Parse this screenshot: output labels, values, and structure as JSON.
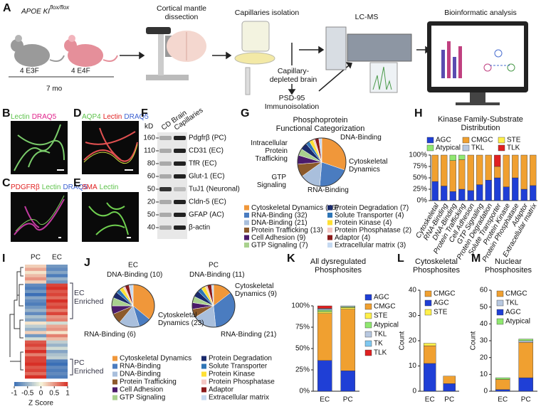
{
  "panels": {
    "A": {
      "label": "A",
      "mouse_strain": "APOE KI",
      "strain_superscript": "flox/flox",
      "group1": "4 E3F",
      "group2": "4 E4F",
      "age": "7 mo",
      "step1": "Cortical mantle dissection",
      "step2": "Capillaries isolation",
      "step3": "LC-MS",
      "step4": "Bioinformatic analysis",
      "branch1": "Capillary-depleted brain",
      "branch2": "PSD-95 Immunoisolation"
    },
    "B": {
      "label": "B",
      "stains": [
        "Lectin",
        "DRAQ5"
      ],
      "stain_colors": [
        "#5cc24a",
        "#e0218a"
      ]
    },
    "C": {
      "label": "C",
      "stains": [
        "PDGFRβ",
        "Lectin",
        "DRAQ5"
      ],
      "stain_colors": [
        "#e02020",
        "#5cc24a",
        "#3a5fd0"
      ]
    },
    "D": {
      "label": "D",
      "stains": [
        "AQP4",
        "Lectin",
        "DRAQ5"
      ],
      "stain_colors": [
        "#5cc24a",
        "#e02020",
        "#3a5fd0"
      ]
    },
    "E": {
      "label": "E",
      "stains": [
        "SMA",
        "Lectin"
      ],
      "stain_colors": [
        "#e02020",
        "#5cc24a"
      ]
    },
    "F": {
      "label": "F",
      "unit": "kD",
      "lanes": [
        "CD Brain",
        "Capillaries"
      ],
      "markers": [
        160,
        110,
        80,
        60,
        50,
        20,
        50,
        40
      ],
      "bands": [
        "Pdgfrβ (PC)",
        "CD31 (EC)",
        "TfR (EC)",
        "Glut-1 (EC)",
        "TuJ1 (Neuronal)",
        "Cldn-5 (EC)",
        "GFAP (AC)",
        "β-actin"
      ]
    }
  },
  "chart_data": [
    {
      "type": "pie",
      "panel": "G",
      "title": "Phosphoprotein Functional Categorization",
      "categories": [
        "Cytoskeletal Dynamics",
        "RNA-Binding",
        "DNA-Binding",
        "Protein Trafficking",
        "Cell Adhesion",
        "GTP Signaling",
        "Protein Degradation",
        "Solute Transporter",
        "Protein Kinase",
        "Protein Phosphatase",
        "Adaptor",
        "Extracellular matrix"
      ],
      "values": [
        46,
        32,
        21,
        13,
        9,
        7,
        7,
        4,
        4,
        2,
        4,
        3
      ],
      "value_labels": [
        "(46)",
        "(32)",
        "(21)",
        "(13)",
        "(9)",
        "(7)",
        "(7)",
        "(4)",
        "(4)",
        "(2)",
        "(4)",
        "(3)"
      ],
      "colors": [
        "#f0973a",
        "#4a7cc0",
        "#a9bfdc",
        "#8c5a2b",
        "#4b1b6b",
        "#a9d18e",
        "#1a2a6c",
        "#2e75b6",
        "#ffe033",
        "#f4c7c3",
        "#8b1a1a",
        "#c5d9f1"
      ],
      "annotations": [
        "DNA-Binding",
        "Cytoskeletal Dynamics",
        "Intracellular Protein Trafficking",
        "GTP Signaling",
        "RNA-Binding"
      ]
    },
    {
      "type": "stacked_bar",
      "panel": "H",
      "title": "Kinase Family-Substrate Distribution",
      "categories": [
        "Cytoskeletal",
        "RNA-Binding",
        "DNA-Binding",
        "Protein Trafficking",
        "Cell Adhesion",
        "GTP Signaling",
        "Protein Degradation",
        "Solute Transporter",
        "Protein Kinase",
        "Protein Phosphatase",
        "Adaptor",
        "Extracellular matrix"
      ],
      "series": [
        {
          "name": "AGC",
          "color": "#1f3fd6",
          "values": [
            42,
            32,
            20,
            25,
            22,
            35,
            45,
            50,
            30,
            50,
            25,
            33
          ]
        },
        {
          "name": "CMGC",
          "color": "#f0a030",
          "values": [
            58,
            68,
            68,
            65,
            78,
            65,
            55,
            25,
            70,
            50,
            75,
            67
          ]
        },
        {
          "name": "STE",
          "color": "#fff04a",
          "values": [
            0,
            0,
            0,
            0,
            0,
            0,
            0,
            0,
            0,
            0,
            0,
            0
          ]
        },
        {
          "name": "Atypical",
          "color": "#90e870",
          "values": [
            0,
            0,
            12,
            10,
            0,
            0,
            0,
            0,
            0,
            0,
            0,
            0
          ]
        },
        {
          "name": "TKL",
          "color": "#b8c8e0",
          "values": [
            0,
            0,
            0,
            0,
            0,
            0,
            0,
            0,
            0,
            0,
            0,
            0
          ]
        },
        {
          "name": "TLK",
          "color": "#e02020",
          "values": [
            0,
            0,
            0,
            0,
            0,
            0,
            0,
            25,
            0,
            0,
            0,
            0
          ]
        }
      ],
      "ylim": [
        0,
        100
      ],
      "yticks": [
        {
          "value": 0,
          "label": "0%"
        },
        {
          "value": 25,
          "label": "25%"
        },
        {
          "value": 50,
          "label": "50%"
        },
        {
          "value": 75,
          "label": "75%"
        },
        {
          "value": 100,
          "label": "100%"
        }
      ]
    },
    {
      "type": "heatmap",
      "panel": "I",
      "columns": [
        "PC",
        "EC"
      ],
      "rows": [
        [
          0.2,
          -0.7
        ],
        [
          0.4,
          -0.8
        ],
        [
          0.1,
          -0.6
        ],
        [
          0.3,
          -0.9
        ],
        [
          0.5,
          -0.5
        ],
        [
          0.2,
          -0.7
        ],
        [
          -0.8,
          0.9
        ],
        [
          -0.9,
          1
        ],
        [
          -0.7,
          0.8
        ],
        [
          -1,
          0.9
        ],
        [
          -0.6,
          0.7
        ],
        [
          -0.8,
          1
        ],
        [
          -0.9,
          0.8
        ],
        [
          -0.7,
          0.9
        ],
        [
          -0.5,
          0.6
        ],
        [
          -0.8,
          0.9
        ],
        [
          -0.4,
          0.5
        ],
        [
          -0.6,
          0.6
        ],
        [
          0.1,
          -0.2
        ],
        [
          -0.3,
          0.4
        ],
        [
          -0.5,
          0.5
        ],
        [
          0.2,
          0.1
        ],
        [
          -0.7,
          0.6
        ],
        [
          -0.2,
          0.3
        ],
        [
          0.8,
          -0.3
        ],
        [
          0.9,
          -0.5
        ],
        [
          0.7,
          -0.2
        ],
        [
          1,
          -0.6
        ],
        [
          0.6,
          -0.4
        ],
        [
          0.9,
          -0.3
        ],
        [
          0.9,
          -0.9
        ],
        [
          1,
          -1
        ],
        [
          0.8,
          -0.8
        ],
        [
          0.9,
          -0.9
        ],
        [
          0.7,
          -0.8
        ],
        [
          1,
          -0.9
        ]
      ],
      "zlim": [
        -1,
        1
      ],
      "zticks": [
        -1,
        -0.5,
        0,
        0.5,
        1
      ],
      "zlabel": "Z Score",
      "annotations": [
        "EC Enriched",
        "PC Enriched"
      ]
    },
    {
      "type": "pie_pair",
      "panel": "J",
      "categories": [
        "Cytoskeletal Dynamics",
        "RNA-Binding",
        "DNA-Binding",
        "Protein Trafficking",
        "Cell Adhesion",
        "GTP Signaling",
        "Protein Degradation",
        "Solute Transporter",
        "Protein Kinase",
        "Protein Phosphatase",
        "Adaptor",
        "Extracellular matrix"
      ],
      "colors": [
        "#f0973a",
        "#4a7cc0",
        "#a9bfdc",
        "#8c5a2b",
        "#4b1b6b",
        "#a9d18e",
        "#1a2a6c",
        "#2e75b6",
        "#ffe033",
        "#f4c7c3",
        "#8b1a1a",
        "#c5d9f1"
      ],
      "series": [
        {
          "name": "EC",
          "values": [
            23,
            6,
            10,
            5,
            4,
            4,
            3,
            2,
            2,
            1,
            2,
            2
          ],
          "annotations": [
            "DNA-Binding (10)",
            "Cytoskeletal Dynamics (23)",
            "RNA-Binding (6)"
          ]
        },
        {
          "name": "PC",
          "values": [
            9,
            21,
            11,
            4,
            3,
            3,
            3,
            2,
            2,
            1,
            2,
            1
          ],
          "annotations": [
            "DNA-Binding (11)",
            "Cytoskeletal Dynamics (9)",
            "RNA-Binding (21)"
          ]
        }
      ]
    },
    {
      "type": "stacked_bar",
      "panel": "K",
      "title": "All dysregulated Phosphosites",
      "categories": [
        "EC",
        "PC"
      ],
      "series": [
        {
          "name": "AGC",
          "color": "#1f3fd6",
          "values": [
            36,
            24
          ]
        },
        {
          "name": "CMGC",
          "color": "#f0a030",
          "values": [
            55,
            72
          ]
        },
        {
          "name": "STE",
          "color": "#fff04a",
          "values": [
            2,
            2
          ]
        },
        {
          "name": "Atypical",
          "color": "#90e870",
          "values": [
            2,
            1
          ]
        },
        {
          "name": "TKL",
          "color": "#b8c8e0",
          "values": [
            1,
            1
          ]
        },
        {
          "name": "TK",
          "color": "#7fc8f0",
          "values": [
            1,
            0
          ]
        },
        {
          "name": "TLK",
          "color": "#e02020",
          "values": [
            3,
            0
          ]
        }
      ],
      "ylim": [
        0,
        100
      ],
      "yticks": [
        {
          "value": 0,
          "label": "0%"
        },
        {
          "value": 25,
          "label": "25%"
        },
        {
          "value": 50,
          "label": "50%"
        },
        {
          "value": 75,
          "label": "75%"
        },
        {
          "value": 100,
          "label": "100%"
        }
      ]
    },
    {
      "type": "stacked_bar",
      "panel": "L",
      "title": "Cytoskeletal Phosphosites",
      "ylabel": "Count",
      "categories": [
        "EC",
        "PC"
      ],
      "series": [
        {
          "name": "AGC",
          "color": "#1f3fd6",
          "values": [
            11,
            3
          ]
        },
        {
          "name": "CMGC",
          "color": "#f0a030",
          "values": [
            7,
            3
          ]
        },
        {
          "name": "STE",
          "color": "#fff04a",
          "values": [
            1,
            0
          ]
        }
      ],
      "ylim": [
        0,
        40
      ],
      "yticks": [
        0,
        10,
        20,
        30,
        40
      ]
    },
    {
      "type": "stacked_bar",
      "panel": "M",
      "title": "Nuclear Phosphosites",
      "ylabel": "Count",
      "categories": [
        "EC",
        "PC"
      ],
      "series": [
        {
          "name": "AGC",
          "color": "#1f3fd6",
          "values": [
            1,
            8
          ]
        },
        {
          "name": "CMGC",
          "color": "#f0a030",
          "values": [
            6,
            21
          ]
        },
        {
          "name": "TKL",
          "color": "#b8c8e0",
          "values": [
            0,
            1
          ]
        },
        {
          "name": "Atypical",
          "color": "#90e870",
          "values": [
            1,
            1
          ]
        }
      ],
      "ylim": [
        0,
        60
      ],
      "yticks": [
        0,
        10,
        20,
        30,
        40,
        50,
        60
      ]
    }
  ]
}
